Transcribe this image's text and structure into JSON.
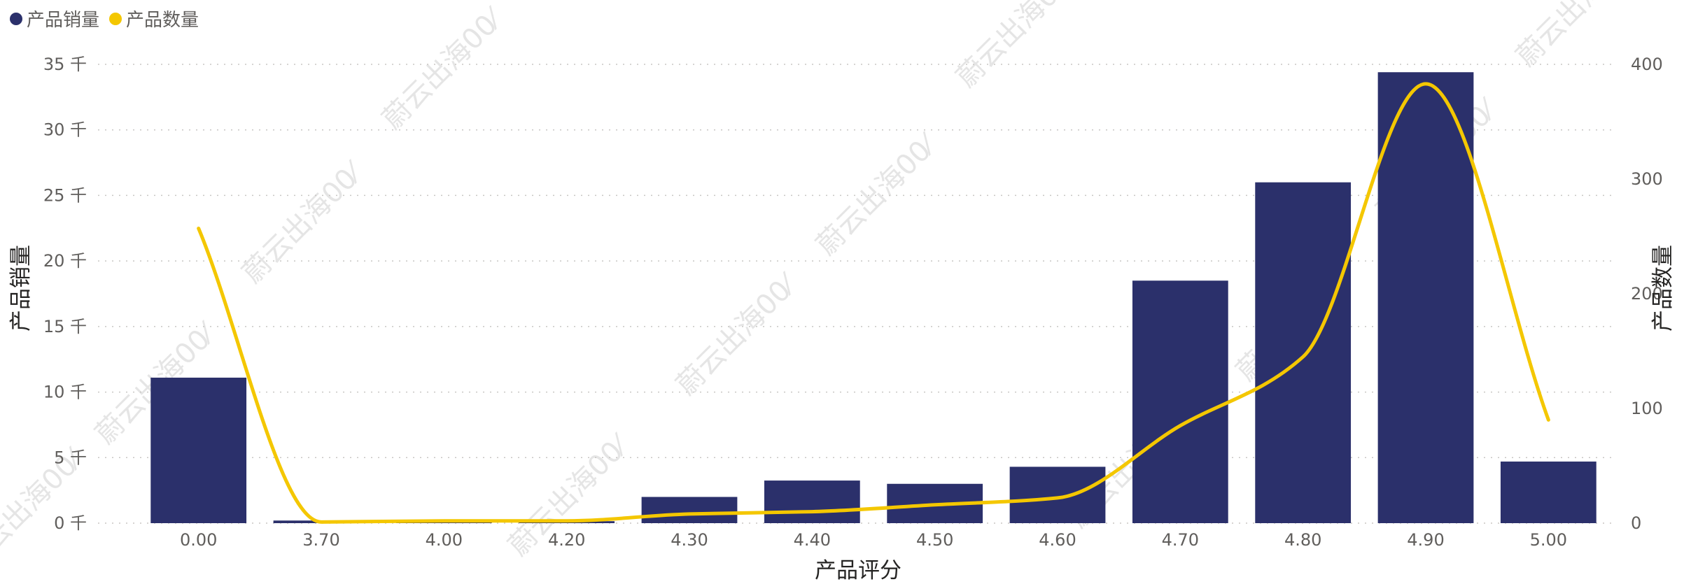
{
  "chart_data": {
    "type": "bar",
    "categories": [
      "0.00",
      "3.70",
      "4.00",
      "4.20",
      "4.30",
      "4.40",
      "4.50",
      "4.60",
      "4.70",
      "4.80",
      "4.90",
      "5.00"
    ],
    "series": [
      {
        "name": "产品销量",
        "type": "bar",
        "axis": "left",
        "color": "#2b306b",
        "values": [
          11100,
          200,
          60,
          150,
          2000,
          3250,
          3000,
          4300,
          18500,
          26000,
          34400,
          4700
        ]
      },
      {
        "name": "产品数量",
        "type": "line",
        "smooth": true,
        "axis": "right",
        "color": "#f4c700",
        "values": [
          257,
          1,
          2,
          2,
          8,
          10,
          16,
          22,
          85,
          145,
          383,
          90
        ]
      }
    ],
    "xlabel": "产品评分",
    "ylabel_left": "产品销量",
    "ylabel_right": "产品数量",
    "ylim_left": [
      0,
      35000
    ],
    "ylim_right": [
      0,
      400
    ],
    "yticks_left": [
      "0 千",
      "5 千",
      "10 千",
      "15 千",
      "20 千",
      "25 千",
      "30 千",
      "35 千"
    ],
    "yticks_right": [
      "0",
      "100",
      "200",
      "300",
      "400"
    ],
    "grid": true,
    "legend_position": "top-left"
  },
  "watermark_text": "蔚云出海00⁄"
}
